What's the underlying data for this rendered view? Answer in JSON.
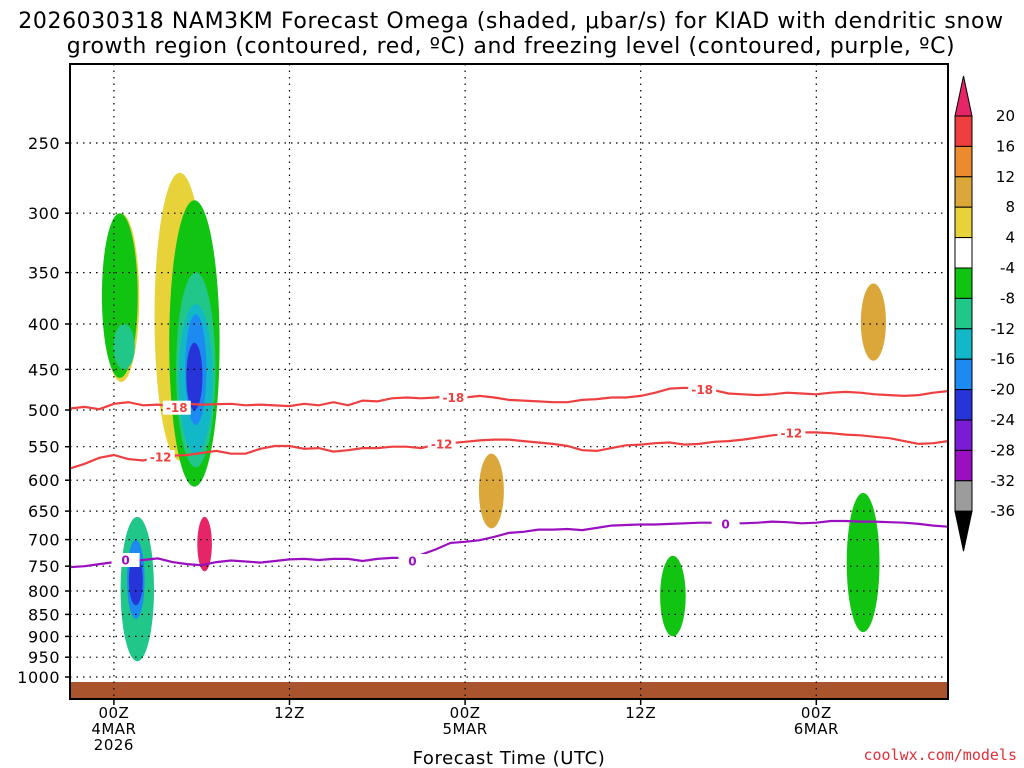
{
  "title": {
    "line1": "2026030318 NAM3KM Forecast Omega (shaded, μbar/s) for KIAD with dendritic snow",
    "line2": "growth region (contoured, red, ºC) and freezing level (contoured, purple, ºC)"
  },
  "credit": "coolwx.com/models",
  "colors": {
    "dgz": "#ee4040",
    "freezing": "#9a10c0",
    "ground": "#a9542c",
    "grid": "#000000"
  },
  "chart_data": {
    "type": "heatmap",
    "title": "2026030318 NAM3KM Forecast Omega (shaded, μbar/s) for KIAD with dendritic snow growth region (contoured, red, ºC) and freezing level (contoured, purple, ºC)",
    "xlabel": "Forecast Time (UTC)",
    "ylabel": "",
    "x_unit": "hours since 2026-03-03 18Z",
    "xlim": [
      3,
      63
    ],
    "y_scale": "log-pressure (inverted)",
    "ylim": [
      1050,
      205
    ],
    "grid": "dotted, every labeled pressure level and x tick",
    "y_ticks": [
      250,
      300,
      350,
      400,
      450,
      500,
      550,
      600,
      650,
      700,
      750,
      800,
      850,
      900,
      950,
      1000
    ],
    "x_ticks": [
      {
        "hour": 6,
        "lines": [
          "00Z",
          "4MAR",
          "2026"
        ]
      },
      {
        "hour": 18,
        "lines": [
          "12Z",
          "",
          ""
        ]
      },
      {
        "hour": 30,
        "lines": [
          "00Z",
          "5MAR",
          ""
        ]
      },
      {
        "hour": 42,
        "lines": [
          "12Z",
          "",
          ""
        ]
      },
      {
        "hour": 54,
        "lines": [
          "00Z",
          "6MAR",
          ""
        ]
      }
    ],
    "colorbar": {
      "levels": [
        20,
        16,
        12,
        8,
        4,
        -4,
        -8,
        -12,
        -16,
        -20,
        -24,
        -28,
        -32,
        -36
      ],
      "colors": [
        "#e62468",
        "#ee3e3e",
        "#ee8a2e",
        "#dca73a",
        "#e8d23a",
        "#ffffff",
        "#11c412",
        "#21c689",
        "#12b8c8",
        "#1c8af0",
        "#2634d8",
        "#7a1cd4",
        "#9a10c0",
        "#9c9c9c",
        "#000000"
      ],
      "top_arrow_color": "#e62468",
      "bottom_arrow_color": "#000000"
    },
    "series": [
      {
        "name": "-18",
        "role": "dendritic snow growth upper bound",
        "contour_labels": [
          {
            "x": 10.3,
            "p": 497
          },
          {
            "x": 29.2,
            "p": 484
          },
          {
            "x": 46.2,
            "p": 474
          }
        ],
        "points": [
          [
            3,
            498
          ],
          [
            4,
            496
          ],
          [
            5,
            499
          ],
          [
            6,
            492
          ],
          [
            7,
            490
          ],
          [
            8,
            494
          ],
          [
            9,
            493
          ],
          [
            10,
            495
          ],
          [
            11,
            492
          ],
          [
            12,
            493
          ],
          [
            14,
            492
          ],
          [
            15,
            494
          ],
          [
            16,
            493
          ],
          [
            18,
            495
          ],
          [
            19,
            492
          ],
          [
            20,
            494
          ],
          [
            21,
            490
          ],
          [
            22,
            494
          ],
          [
            23,
            488
          ],
          [
            24,
            489
          ],
          [
            25,
            485
          ],
          [
            26,
            484
          ],
          [
            27,
            485
          ],
          [
            28,
            484
          ],
          [
            29,
            482
          ],
          [
            30,
            484
          ],
          [
            31,
            482
          ],
          [
            32,
            484
          ],
          [
            33,
            487
          ],
          [
            34,
            488
          ],
          [
            35,
            489
          ],
          [
            36,
            490
          ],
          [
            37,
            490
          ],
          [
            38,
            487
          ],
          [
            39,
            486
          ],
          [
            40,
            484
          ],
          [
            41,
            484
          ],
          [
            42,
            482
          ],
          [
            43,
            478
          ],
          [
            44,
            473
          ],
          [
            45,
            472
          ],
          [
            46,
            473
          ],
          [
            47,
            475
          ],
          [
            48,
            479
          ],
          [
            49,
            480
          ],
          [
            50,
            481
          ],
          [
            51,
            480
          ],
          [
            52,
            478
          ],
          [
            53,
            479
          ],
          [
            54,
            480
          ],
          [
            55,
            478
          ],
          [
            56,
            477
          ],
          [
            57,
            478
          ],
          [
            58,
            480
          ],
          [
            59,
            481
          ],
          [
            60,
            482
          ],
          [
            61,
            481
          ],
          [
            62,
            478
          ],
          [
            63,
            476
          ]
        ]
      },
      {
        "name": "-12",
        "role": "dendritic snow growth lower bound",
        "contour_labels": [
          {
            "x": 9.2,
            "p": 565
          },
          {
            "x": 28.4,
            "p": 546
          },
          {
            "x": 52.3,
            "p": 531
          }
        ],
        "points": [
          [
            3,
            582
          ],
          [
            4,
            575
          ],
          [
            5,
            566
          ],
          [
            6,
            562
          ],
          [
            7,
            568
          ],
          [
            8,
            570
          ],
          [
            9,
            565
          ],
          [
            10,
            563
          ],
          [
            11,
            562
          ],
          [
            12,
            559
          ],
          [
            13,
            556
          ],
          [
            14,
            560
          ],
          [
            15,
            560
          ],
          [
            16,
            553
          ],
          [
            17,
            549
          ],
          [
            18,
            549
          ],
          [
            19,
            553
          ],
          [
            20,
            552
          ],
          [
            21,
            557
          ],
          [
            22,
            555
          ],
          [
            23,
            552
          ],
          [
            24,
            552
          ],
          [
            25,
            550
          ],
          [
            26,
            550
          ],
          [
            27,
            552
          ],
          [
            28,
            547
          ],
          [
            29,
            545
          ],
          [
            30,
            543
          ],
          [
            31,
            541
          ],
          [
            32,
            540
          ],
          [
            33,
            540
          ],
          [
            34,
            542
          ],
          [
            35,
            544
          ],
          [
            36,
            546
          ],
          [
            37,
            549
          ],
          [
            38,
            555
          ],
          [
            39,
            556
          ],
          [
            40,
            552
          ],
          [
            41,
            548
          ],
          [
            42,
            547
          ],
          [
            43,
            545
          ],
          [
            44,
            544
          ],
          [
            45,
            547
          ],
          [
            46,
            546
          ],
          [
            47,
            543
          ],
          [
            48,
            542
          ],
          [
            49,
            540
          ],
          [
            50,
            537
          ],
          [
            51,
            534
          ],
          [
            52,
            532
          ],
          [
            53,
            530
          ],
          [
            54,
            530
          ],
          [
            55,
            531
          ],
          [
            56,
            533
          ],
          [
            57,
            534
          ],
          [
            58,
            536
          ],
          [
            59,
            538
          ],
          [
            60,
            542
          ],
          [
            61,
            546
          ],
          [
            62,
            545
          ],
          [
            63,
            542
          ]
        ]
      },
      {
        "name": "0",
        "role": "freezing level",
        "contour_labels": [
          {
            "x": 6.8,
            "p": 738
          },
          {
            "x": 26.4,
            "p": 740
          },
          {
            "x": 47.8,
            "p": 672
          }
        ],
        "points": [
          [
            3,
            752
          ],
          [
            4,
            750
          ],
          [
            5,
            746
          ],
          [
            6,
            742
          ],
          [
            7,
            740
          ],
          [
            8,
            738
          ],
          [
            9,
            735
          ],
          [
            10,
            742
          ],
          [
            11,
            746
          ],
          [
            12,
            748
          ],
          [
            13,
            742
          ],
          [
            14,
            739
          ],
          [
            15,
            741
          ],
          [
            16,
            743
          ],
          [
            17,
            740
          ],
          [
            18,
            737
          ],
          [
            19,
            736
          ],
          [
            20,
            738
          ],
          [
            21,
            736
          ],
          [
            22,
            736
          ],
          [
            23,
            740
          ],
          [
            24,
            736
          ],
          [
            25,
            734
          ],
          [
            26,
            734
          ],
          [
            27,
            728
          ],
          [
            28,
            718
          ],
          [
            29,
            706
          ],
          [
            30,
            704
          ],
          [
            31,
            701
          ],
          [
            32,
            695
          ],
          [
            33,
            688
          ],
          [
            34,
            686
          ],
          [
            35,
            682
          ],
          [
            36,
            682
          ],
          [
            37,
            681
          ],
          [
            38,
            683
          ],
          [
            39,
            679
          ],
          [
            40,
            675
          ],
          [
            41,
            674
          ],
          [
            42,
            673
          ],
          [
            43,
            673
          ],
          [
            44,
            672
          ],
          [
            45,
            671
          ],
          [
            46,
            670
          ],
          [
            47,
            670
          ],
          [
            48,
            671
          ],
          [
            49,
            671
          ],
          [
            50,
            670
          ],
          [
            51,
            668
          ],
          [
            52,
            669
          ],
          [
            53,
            671
          ],
          [
            54,
            670
          ],
          [
            55,
            667
          ],
          [
            56,
            667
          ],
          [
            57,
            668
          ],
          [
            58,
            668
          ],
          [
            59,
            669
          ],
          [
            60,
            670
          ],
          [
            61,
            672
          ],
          [
            62,
            675
          ],
          [
            63,
            677
          ]
        ]
      }
    ],
    "omega_regions": [
      {
        "level": 4,
        "x": 6.5,
        "px": [
          300,
          465
        ]
      },
      {
        "level": -4,
        "x": 6.4,
        "px": [
          300,
          460
        ]
      },
      {
        "level": -8,
        "x": 6.7,
        "px": [
          400,
          450
        ]
      },
      {
        "level": 4,
        "x": 10.5,
        "px": [
          270,
          570
        ]
      },
      {
        "level": -4,
        "x": 11.5,
        "px": [
          290,
          610
        ]
      },
      {
        "level": -8,
        "x": 11.6,
        "px": [
          350,
          580
        ]
      },
      {
        "level": -12,
        "x": 11.6,
        "px": [
          380,
          560
        ]
      },
      {
        "level": -16,
        "x": 11.6,
        "px": [
          390,
          520
        ]
      },
      {
        "level": -20,
        "x": 11.5,
        "px": [
          420,
          500
        ]
      },
      {
        "level": 20,
        "x": 12.2,
        "px": [
          660,
          760
        ]
      },
      {
        "level": -8,
        "x": 7.6,
        "px": [
          660,
          960
        ]
      },
      {
        "level": -16,
        "x": 7.5,
        "px": [
          700,
          860
        ]
      },
      {
        "level": -20,
        "x": 7.5,
        "px": [
          730,
          830
        ]
      },
      {
        "level": 8,
        "x": 31.8,
        "px": [
          560,
          680
        ]
      },
      {
        "level": 8,
        "x": 57.9,
        "px": [
          360,
          440
        ]
      },
      {
        "level": -4,
        "x": 57.2,
        "px": [
          620,
          890
        ]
      },
      {
        "level": -4,
        "x": 44.2,
        "px": [
          730,
          900
        ]
      }
    ],
    "ground": {
      "p_top": 1013
    }
  }
}
